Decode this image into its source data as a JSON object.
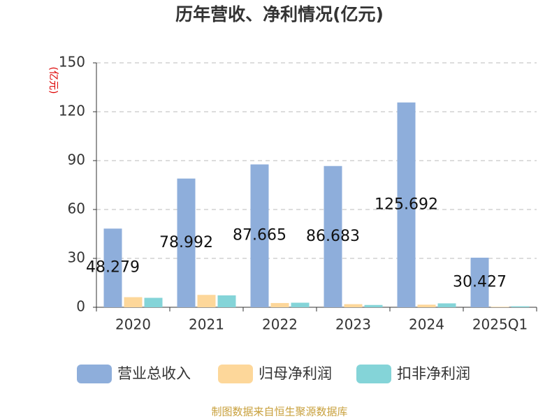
{
  "chart_data": {
    "type": "bar",
    "title": "历年营收、净利情况(亿元)",
    "y_label": "(亿元)",
    "categories": [
      "2020",
      "2021",
      "2022",
      "2023",
      "2024",
      "2025Q1"
    ],
    "series": [
      {
        "name": "营业总收入",
        "color": "#8eaedb",
        "values": [
          48.279,
          78.992,
          87.665,
          86.683,
          125.692,
          30.427
        ],
        "show_labels": true
      },
      {
        "name": "归母净利润",
        "color": "#fdd79a",
        "values": [
          6.2,
          7.6,
          2.6,
          1.9,
          1.6,
          0.3
        ],
        "show_labels": false
      },
      {
        "name": "扣非净利润",
        "color": "#84d4d8",
        "values": [
          5.8,
          7.3,
          2.8,
          1.4,
          2.4,
          0.6
        ],
        "show_labels": false
      }
    ],
    "ylim": [
      0,
      150
    ],
    "yticks": [
      0,
      30,
      60,
      90,
      120,
      150
    ],
    "grid": true,
    "legend": "bottom",
    "source": "制图数据来自恒生聚源数据库"
  }
}
